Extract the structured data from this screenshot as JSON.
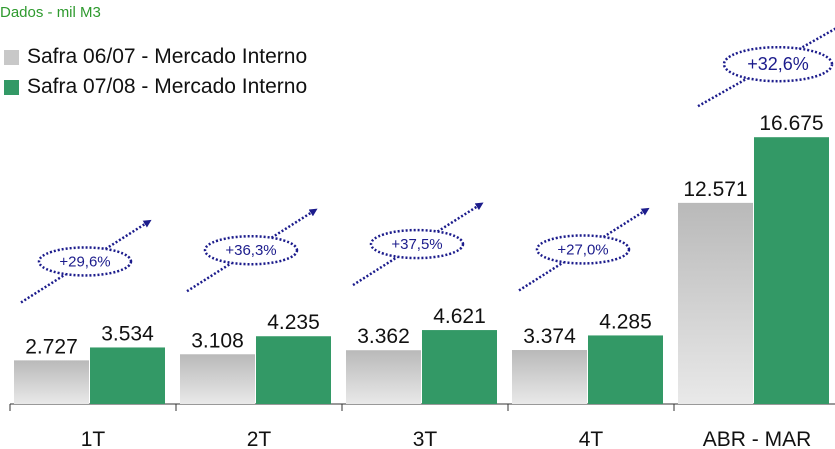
{
  "subtitle": "Dados - mil M3",
  "chart_data": {
    "type": "bar",
    "categories": [
      "1T",
      "2T",
      "3T",
      "4T",
      "ABR - MAR"
    ],
    "series": [
      {
        "name": "Safra 06/07 - Mercado Interno",
        "values": [
          2727,
          3108,
          3362,
          3374,
          12571
        ],
        "labels": [
          "2.727",
          "3.108",
          "3.362",
          "3.374",
          "12.571"
        ],
        "color": "#c8c8c8"
      },
      {
        "name": "Safra 07/08 - Mercado Interno",
        "values": [
          3534,
          4235,
          4621,
          4285,
          16675
        ],
        "labels": [
          "3.534",
          "4.235",
          "4.621",
          "4.285",
          "16.675"
        ],
        "color": "#339966"
      }
    ],
    "growth_annotations": [
      "+29,6%",
      "+36,3%",
      "+37,5%",
      "+27,0%",
      "+32,6%"
    ],
    "ylim": [
      0,
      17500
    ],
    "grid": false,
    "legend_position": "top-left"
  },
  "colors": {
    "annotation": "#1c1c8c",
    "subtitle": "#2e9a2e",
    "axis": "#333333"
  }
}
